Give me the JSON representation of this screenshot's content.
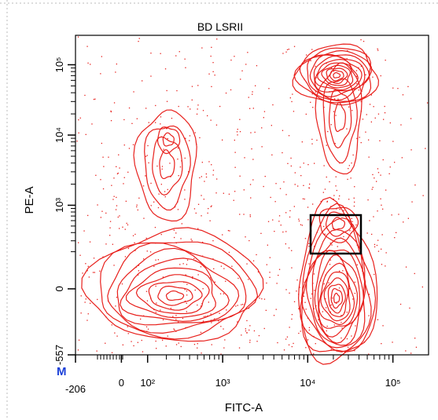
{
  "chart_data": {
    "type": "contour",
    "title": "BD LSRII",
    "x_label": "FITC-A",
    "y_label": "PE-A",
    "corner_label": "M",
    "x_scale": "biexponential",
    "y_scale": "biexponential",
    "color": "#e8201c",
    "xlim": [
      -206,
      262144
    ],
    "xticks": [
      {
        "value": -206,
        "label": "-206"
      },
      0,
      {
        "value": 100,
        "label": "10²"
      },
      {
        "value": 1000,
        "label": "10³"
      },
      {
        "value": 10000,
        "label": "10⁴"
      },
      {
        "value": 100000,
        "label": "10⁵"
      }
    ],
    "ylim": [
      -557,
      262144
    ],
    "yticks": [
      {
        "value": -557,
        "label": "-557"
      },
      0,
      {
        "value": 1000,
        "label": "10³"
      },
      {
        "value": 10000,
        "label": "10⁴"
      },
      {
        "value": 100000,
        "label": "10⁵"
      }
    ]
  }
}
